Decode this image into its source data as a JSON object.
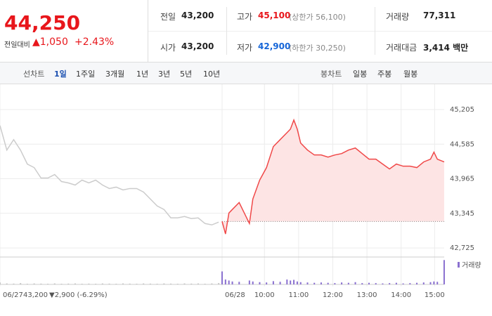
{
  "header": {
    "price": "44,250",
    "change_label": "전일대비",
    "change": "▲1,050",
    "change_rate": "+2.43%"
  },
  "summary": {
    "rows": [
      [
        {
          "label": "전일",
          "value": "43,200"
        },
        {
          "label": "고가",
          "value": "45,100",
          "note": "(상한가 56,100)"
        },
        {
          "label": "거래량",
          "value": "77,311"
        }
      ],
      [
        {
          "label": "시가",
          "value": "43,200"
        },
        {
          "label": "저가",
          "value": "42,900",
          "note": "(하한가 30,250)"
        },
        {
          "label": "거래대금",
          "value": "3,414 백만"
        }
      ]
    ]
  },
  "tabs": {
    "line_label": "선차트",
    "line_periods": [
      "1일",
      "1주일",
      "3개월",
      "1년",
      "3년",
      "5년",
      "10년"
    ],
    "candle_label": "봉차트",
    "candle_periods": [
      "일봉",
      "주봉",
      "월봉"
    ]
  },
  "chart_data": [
    {
      "type": "line",
      "xlim": [
        0,
        144
      ],
      "ylim": [
        42575,
        45595
      ],
      "yticks": [
        {
          "value": 42725,
          "label": "42,725"
        },
        {
          "value": 43345,
          "label": "43,345"
        },
        {
          "value": 43965,
          "label": "43,965"
        },
        {
          "value": 44585,
          "label": "44,585"
        },
        {
          "value": 45205,
          "label": "45,205"
        }
      ],
      "xticks": [
        {
          "value": 0,
          "label": "06/27"
        },
        {
          "value": 65,
          "label": "06/28"
        },
        {
          "value": 77.4,
          "label": "10:00"
        },
        {
          "value": 87.4,
          "label": "11:00"
        },
        {
          "value": 97.4,
          "label": "12:00"
        },
        {
          "value": 107.4,
          "label": "13:00"
        },
        {
          "value": 117.4,
          "label": "14:00"
        },
        {
          "value": 127.2,
          "label": "15:00"
        }
      ],
      "grid": true,
      "baseline": 43200,
      "annotation": {
        "close": "43,200",
        "change": "▼2,900 (-6.29%)"
      },
      "series": [
        {
          "color": "#cccccc",
          "x": [
            0,
            2,
            4,
            6,
            8,
            10,
            12,
            14,
            16,
            18,
            20,
            22,
            24,
            26,
            28,
            30,
            32,
            34,
            36,
            38,
            40,
            42,
            44,
            46,
            48,
            50,
            52,
            54,
            56,
            58,
            60,
            62,
            64
          ],
          "values": [
            44917,
            44479,
            44666,
            44479,
            44228,
            44165,
            43978,
            43978,
            44040,
            43915,
            43890,
            43852,
            43940,
            43890,
            43940,
            43852,
            43790,
            43815,
            43765,
            43790,
            43790,
            43727,
            43602,
            43477,
            43414,
            43264,
            43264,
            43289,
            43251,
            43264,
            43163,
            43138,
            43188
          ]
        },
        {
          "color": "#f04848",
          "x": [
            65,
            66,
            67,
            68,
            70,
            73,
            74,
            76,
            78,
            80,
            82,
            84,
            85,
            86,
            87,
            88,
            90,
            92,
            94,
            96,
            98,
            100,
            102,
            104,
            106,
            108,
            110,
            112,
            114,
            116,
            118,
            120,
            122,
            124,
            126,
            127,
            128,
            130
          ],
          "values": [
            43200,
            42976,
            43351,
            43414,
            43539,
            43163,
            43602,
            43940,
            44165,
            44541,
            44666,
            44791,
            44854,
            45017,
            44854,
            44604,
            44479,
            44391,
            44391,
            44353,
            44391,
            44416,
            44479,
            44516,
            44416,
            44316,
            44316,
            44228,
            44140,
            44228,
            44190,
            44190,
            44165,
            44266,
            44316,
            44441,
            44316,
            44266
          ]
        }
      ]
    },
    {
      "type": "bar",
      "xlim": [
        0,
        144
      ],
      "ylim": [
        0,
        8000
      ],
      "series": [
        {
          "color": "#c4c4c4",
          "x": [
            0,
            2,
            4,
            6,
            8,
            10,
            12,
            14,
            16,
            18,
            20,
            22,
            24,
            26,
            28,
            30,
            32,
            34,
            36,
            38,
            40,
            42,
            44,
            46,
            48,
            50,
            52,
            54,
            56,
            58,
            60,
            62,
            64
          ],
          "values": [
            600,
            300,
            250,
            400,
            200,
            300,
            250,
            200,
            300,
            200,
            250,
            300,
            200,
            250,
            200,
            300,
            250,
            200,
            300,
            250,
            200,
            300,
            250,
            200,
            300,
            250,
            200,
            300,
            250,
            300,
            200,
            300,
            400
          ]
        },
        {
          "name": "거래량",
          "color": "#8a70d0",
          "x": [
            65,
            66,
            67,
            68,
            70,
            73,
            74,
            76,
            78,
            80,
            82,
            84,
            85,
            86,
            87,
            88,
            90,
            92,
            94,
            96,
            98,
            100,
            102,
            104,
            106,
            108,
            110,
            112,
            114,
            116,
            118,
            120,
            122,
            124,
            126,
            127,
            128,
            130
          ],
          "values": [
            4000,
            1500,
            1200,
            900,
            800,
            1200,
            900,
            700,
            600,
            1000,
            800,
            1500,
            1200,
            1400,
            900,
            700,
            600,
            500,
            600,
            500,
            400,
            600,
            500,
            700,
            400,
            500,
            400,
            300,
            400,
            500,
            300,
            400,
            500,
            600,
            700,
            900,
            800,
            7500
          ]
        }
      ]
    }
  ]
}
